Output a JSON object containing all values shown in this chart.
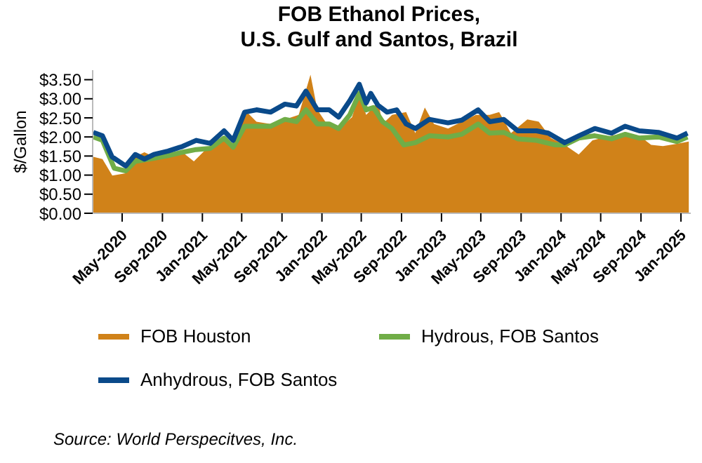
{
  "chart_data": {
    "type": "line",
    "title": "FOB Ethanol Prices,\nU.S. Gulf and Santos, Brazil",
    "ylabel": "$/Gallon",
    "xlim": [
      "2020-02-01",
      "2025-01-31"
    ],
    "xticks": [
      {
        "value": "2020-05-01",
        "label": "May-2020"
      },
      {
        "value": "2020-09-01",
        "label": "Sep-2020"
      },
      {
        "value": "2021-01-01",
        "label": "Jan-2021"
      },
      {
        "value": "2021-05-01",
        "label": "May-2021"
      },
      {
        "value": "2021-09-01",
        "label": "Sep-2021"
      },
      {
        "value": "2022-01-01",
        "label": "Jan-2022"
      },
      {
        "value": "2022-05-01",
        "label": "May-2022"
      },
      {
        "value": "2022-09-01",
        "label": "Sep-2022"
      },
      {
        "value": "2023-01-01",
        "label": "Jan-2023"
      },
      {
        "value": "2023-05-01",
        "label": "May-2023"
      },
      {
        "value": "2023-09-01",
        "label": "Sep-2023"
      },
      {
        "value": "2024-01-01",
        "label": "Jan-2024"
      },
      {
        "value": "2024-05-01",
        "label": "May-2024"
      },
      {
        "value": "2024-09-01",
        "label": "Sep-2024"
      },
      {
        "value": "2025-01-01",
        "label": "Jan-2025"
      }
    ],
    "ylim": [
      0,
      3.75
    ],
    "yticks": [
      {
        "value": 0,
        "label": "$0.00"
      },
      {
        "value": 0.5,
        "label": "$0.50"
      },
      {
        "value": 1,
        "label": "$1.00"
      },
      {
        "value": 1.5,
        "label": "$1.50"
      },
      {
        "value": 2,
        "label": "$2.00"
      },
      {
        "value": 2.5,
        "label": "$2.50"
      },
      {
        "value": 3,
        "label": "$3.00"
      },
      {
        "value": 3.5,
        "label": "$3.50"
      }
    ],
    "legend": "bottom",
    "marker": "none",
    "line_style": "solid",
    "series": [
      {
        "name": "FOB Houston",
        "type": "area",
        "color": "#d08219",
        "x": [
          "2020-02-03",
          "2020-03-02",
          "2020-04-01",
          "2020-05-12",
          "2020-06-10",
          "2020-07-08",
          "2020-08-06",
          "2020-09-18",
          "2020-11-01",
          "2020-12-06",
          "2021-01-11",
          "2021-03-08",
          "2021-04-05",
          "2021-05-10",
          "2021-06-15",
          "2021-07-28",
          "2021-09-10",
          "2021-10-22",
          "2021-11-27",
          "2021-12-18",
          "2022-01-16",
          "2022-02-21",
          "2022-04-03",
          "2022-04-25",
          "2022-05-16",
          "2022-06-07",
          "2022-06-21",
          "2022-07-05",
          "2022-08-03",
          "2022-09-15",
          "2022-10-13",
          "2022-11-11",
          "2022-12-09",
          "2023-01-21",
          "2023-03-04",
          "2023-04-16",
          "2023-05-28",
          "2023-06-26",
          "2023-08-01",
          "2023-09-20",
          "2023-10-25",
          "2023-12-01",
          "2024-01-12",
          "2024-02-24",
          "2024-04-06",
          "2024-06-03",
          "2024-07-15",
          "2024-08-27",
          "2024-10-02",
          "2024-11-07",
          "2024-12-20",
          "2025-01-25"
        ],
        "values": [
          1.48,
          1.42,
          0.99,
          1.05,
          1.48,
          1.6,
          1.48,
          1.54,
          1.6,
          1.36,
          1.67,
          1.97,
          1.79,
          2.71,
          2.4,
          2.34,
          2.46,
          2.58,
          3.63,
          2.71,
          2.34,
          2.22,
          2.52,
          3.14,
          2.58,
          2.77,
          2.95,
          2.34,
          2.58,
          2.65,
          2.1,
          2.77,
          2.34,
          2.22,
          2.4,
          2.58,
          2.58,
          2.65,
          2.1,
          2.46,
          2.4,
          1.97,
          1.79,
          1.54,
          1.91,
          2.03,
          2.1,
          2.03,
          1.79,
          1.76,
          1.82,
          1.88
        ]
      },
      {
        "name": "Hydrous, FOB Santos",
        "color": "#70ad47",
        "x": [
          "2020-02-03",
          "2020-03-02",
          "2020-04-07",
          "2020-05-12",
          "2020-06-10",
          "2020-07-23",
          "2020-09-18",
          "2020-11-01",
          "2020-12-13",
          "2021-01-25",
          "2021-03-08",
          "2021-04-05",
          "2021-05-10",
          "2021-06-15",
          "2021-07-28",
          "2021-09-10",
          "2021-10-15",
          "2021-11-13",
          "2021-12-18",
          "2022-01-23",
          "2022-02-21",
          "2022-03-27",
          "2022-04-25",
          "2022-05-16",
          "2022-06-07",
          "2022-07-05",
          "2022-08-03",
          "2022-09-08",
          "2022-10-13",
          "2022-11-25",
          "2023-01-21",
          "2023-03-04",
          "2023-04-23",
          "2023-05-28",
          "2023-07-10",
          "2023-08-22",
          "2023-10-18",
          "2023-12-15",
          "2024-01-12",
          "2024-02-24",
          "2024-04-13",
          "2024-06-03",
          "2024-07-15",
          "2024-08-27",
          "2024-10-24",
          "2024-12-20",
          "2025-01-21"
        ],
        "values": [
          2.0,
          1.91,
          1.18,
          1.11,
          1.36,
          1.42,
          1.51,
          1.6,
          1.67,
          1.7,
          1.97,
          1.73,
          2.28,
          2.28,
          2.28,
          2.46,
          2.4,
          2.71,
          2.34,
          2.34,
          2.22,
          2.58,
          3.14,
          2.71,
          2.77,
          2.4,
          2.22,
          1.79,
          1.85,
          2.03,
          2.0,
          2.07,
          2.34,
          2.1,
          2.12,
          1.95,
          1.91,
          1.79,
          1.79,
          1.97,
          2.03,
          1.95,
          2.07,
          1.97,
          2.0,
          1.88,
          2.0
        ]
      },
      {
        "name": "Anhydrous, FOB Santos",
        "color": "#0a4a8a",
        "x": [
          "2020-02-03",
          "2020-03-02",
          "2020-03-31",
          "2020-05-12",
          "2020-06-10",
          "2020-07-08",
          "2020-08-06",
          "2020-09-18",
          "2020-11-01",
          "2020-12-13",
          "2021-01-25",
          "2021-03-08",
          "2021-04-05",
          "2021-05-10",
          "2021-06-15",
          "2021-07-28",
          "2021-09-10",
          "2021-10-15",
          "2021-11-13",
          "2021-12-18",
          "2022-01-23",
          "2022-02-21",
          "2022-03-27",
          "2022-04-25",
          "2022-05-16",
          "2022-05-30",
          "2022-06-21",
          "2022-07-19",
          "2022-08-17",
          "2022-09-15",
          "2022-10-13",
          "2022-11-25",
          "2023-01-21",
          "2023-03-04",
          "2023-04-23",
          "2023-05-28",
          "2023-07-10",
          "2023-08-22",
          "2023-10-18",
          "2023-11-23",
          "2024-01-12",
          "2024-02-24",
          "2024-04-13",
          "2024-06-03",
          "2024-07-15",
          "2024-08-27",
          "2024-10-24",
          "2024-12-20",
          "2025-01-21"
        ],
        "values": [
          2.12,
          2.03,
          1.48,
          1.24,
          1.54,
          1.42,
          1.54,
          1.63,
          1.75,
          1.91,
          1.83,
          2.16,
          1.91,
          2.65,
          2.71,
          2.65,
          2.86,
          2.81,
          3.2,
          2.71,
          2.71,
          2.52,
          2.95,
          3.38,
          2.89,
          3.14,
          2.83,
          2.65,
          2.71,
          2.34,
          2.22,
          2.46,
          2.37,
          2.44,
          2.71,
          2.4,
          2.46,
          2.16,
          2.16,
          2.1,
          1.85,
          2.03,
          2.22,
          2.1,
          2.28,
          2.16,
          2.12,
          1.97,
          2.1
        ]
      }
    ],
    "annotations": [
      "Source: World Perspecitves, Inc."
    ]
  }
}
